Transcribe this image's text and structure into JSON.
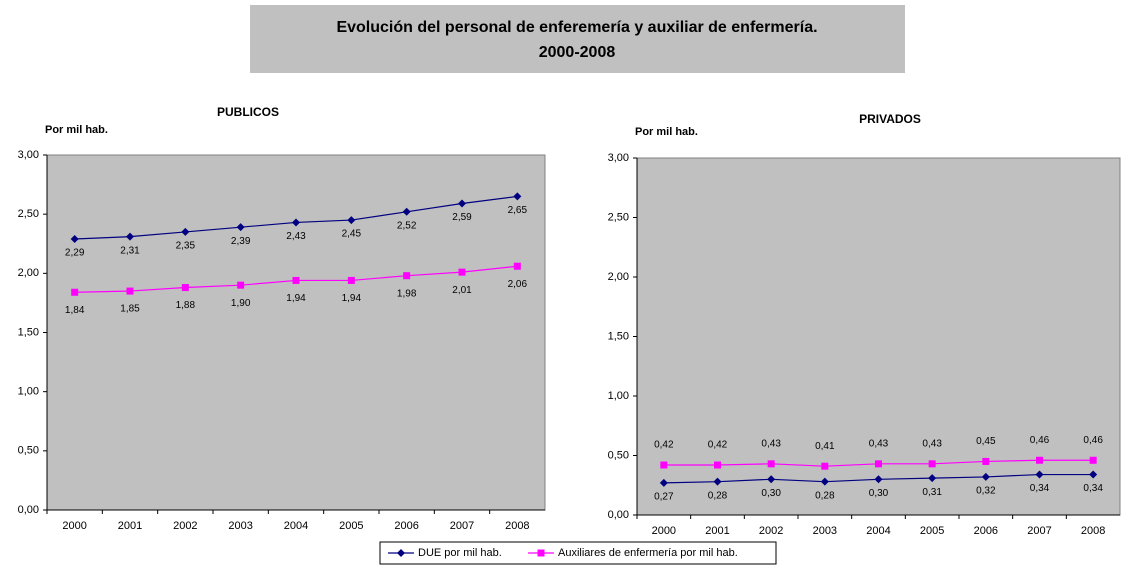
{
  "title": [
    "Evolución del personal de enferemería y auxiliar de enfermería.",
    "2000-2008"
  ],
  "chart_data": [
    {
      "type": "line",
      "title": "PUBLICOS",
      "y_label": "Por mil hab.",
      "categories": [
        "2000",
        "2001",
        "2002",
        "2003",
        "2004",
        "2005",
        "2006",
        "2007",
        "2008"
      ],
      "series": [
        {
          "name": "DUE por mil hab.",
          "color": "#000080",
          "marker": "diamond",
          "values": [
            2.29,
            2.31,
            2.35,
            2.39,
            2.43,
            2.45,
            2.52,
            2.59,
            2.65
          ],
          "value_labels": [
            "2,29",
            "2,31",
            "2,35",
            "2,39",
            "2,43",
            "2,45",
            "2,52",
            "2,59",
            "2,65"
          ]
        },
        {
          "name": "Auxiliares de enfermería por mil hab.",
          "color": "#ff00ff",
          "marker": "square",
          "values": [
            1.84,
            1.85,
            1.88,
            1.9,
            1.94,
            1.94,
            1.98,
            2.01,
            2.06
          ],
          "value_labels": [
            "1,84",
            "1,85",
            "1,88",
            "1,90",
            "1,94",
            "1,94",
            "1,98",
            "2,01",
            "2,06"
          ]
        }
      ],
      "ylim": [
        0,
        3
      ],
      "yticks": [
        {
          "value": 0,
          "label": "0,00"
        },
        {
          "value": 0.5,
          "label": "0,50"
        },
        {
          "value": 1,
          "label": "1,00"
        },
        {
          "value": 1.5,
          "label": "1,50"
        },
        {
          "value": 2,
          "label": "2,00"
        },
        {
          "value": 2.5,
          "label": "2,50"
        },
        {
          "value": 3,
          "label": "3,00"
        }
      ],
      "grid": false
    },
    {
      "type": "line",
      "title": "PRIVADOS",
      "y_label": "Por mil hab.",
      "categories": [
        "2000",
        "2001",
        "2002",
        "2003",
        "2004",
        "2005",
        "2006",
        "2007",
        "2008"
      ],
      "series": [
        {
          "name": "DUE por mil hab.",
          "color": "#000080",
          "marker": "diamond",
          "values": [
            0.27,
            0.28,
            0.3,
            0.28,
            0.3,
            0.31,
            0.32,
            0.34,
            0.34
          ],
          "value_labels": [
            "0,27",
            "0,28",
            "0,30",
            "0,28",
            "0,30",
            "0,31",
            "0,32",
            "0,34",
            "0,34"
          ]
        },
        {
          "name": "Auxiliares de enfermería por mil hab.",
          "color": "#ff00ff",
          "marker": "square",
          "values": [
            0.42,
            0.42,
            0.43,
            0.41,
            0.43,
            0.43,
            0.45,
            0.46,
            0.46
          ],
          "value_labels": [
            "0,42",
            "0,42",
            "0,43",
            "0,41",
            "0,43",
            "0,43",
            "0,45",
            "0,46",
            "0,46"
          ]
        }
      ],
      "ylim": [
        0,
        3
      ],
      "yticks": [
        {
          "value": 0,
          "label": "0,00"
        },
        {
          "value": 0.5,
          "label": "0,50"
        },
        {
          "value": 1,
          "label": "1,00"
        },
        {
          "value": 1.5,
          "label": "1,50"
        },
        {
          "value": 2,
          "label": "2,00"
        },
        {
          "value": 2.5,
          "label": "2,50"
        },
        {
          "value": 3,
          "label": "3,00"
        }
      ],
      "grid": false
    }
  ]
}
